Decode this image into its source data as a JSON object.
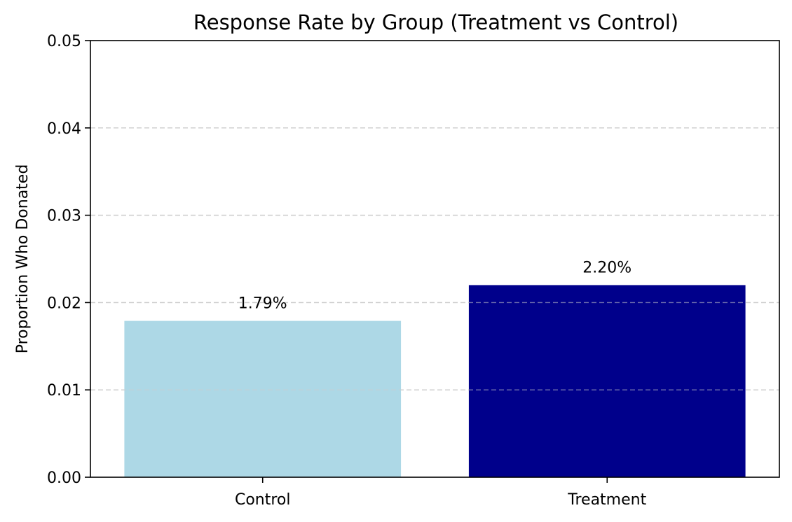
{
  "chart_data": {
    "type": "bar",
    "title": "Response Rate by Group (Treatment vs Control)",
    "xlabel": "",
    "ylabel": "Proportion Who Donated",
    "categories": [
      "Control",
      "Treatment"
    ],
    "values": [
      0.0179,
      0.022
    ],
    "value_labels": [
      "1.79%",
      "2.20%"
    ],
    "bar_colors": [
      "#add8e6",
      "#00008b"
    ],
    "ylim": [
      0,
      0.05
    ],
    "yticks": [
      0.0,
      0.01,
      0.02,
      0.03,
      0.04,
      0.05
    ],
    "ytick_labels": [
      "0.00",
      "0.01",
      "0.02",
      "0.03",
      "0.04",
      "0.05"
    ],
    "grid": "y-dashed",
    "legend": "none"
  }
}
